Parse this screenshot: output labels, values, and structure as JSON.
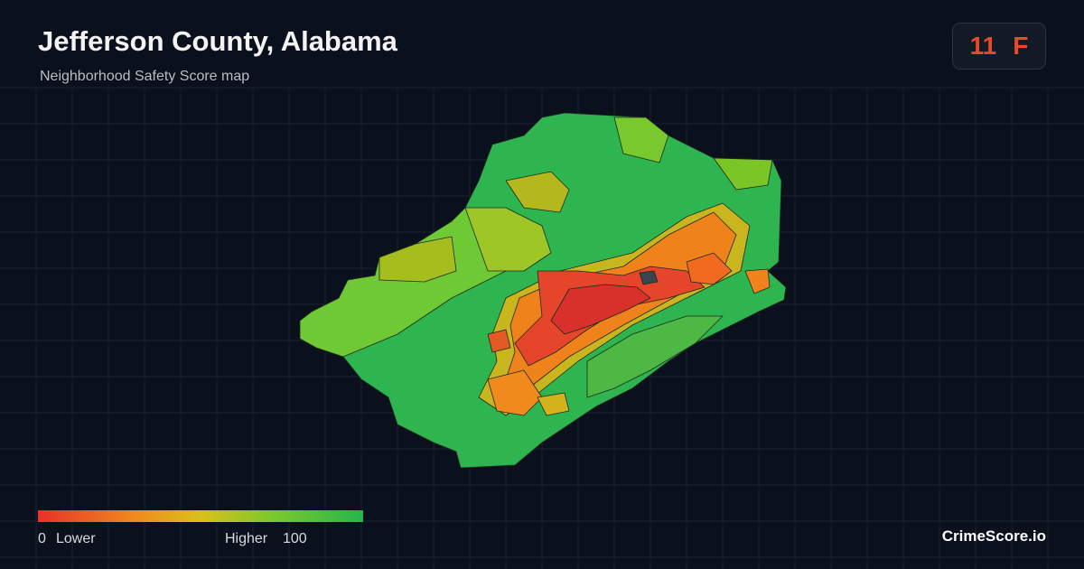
{
  "header": {
    "title": "Jefferson County, Alabama",
    "subtitle": "Neighborhood Safety Score map"
  },
  "score": {
    "value": 11,
    "grade": "F"
  },
  "legend": {
    "min": 0,
    "min_label": "Lower",
    "max_label": "Higher",
    "max": 100
  },
  "brand": "CrimeScore.io"
}
